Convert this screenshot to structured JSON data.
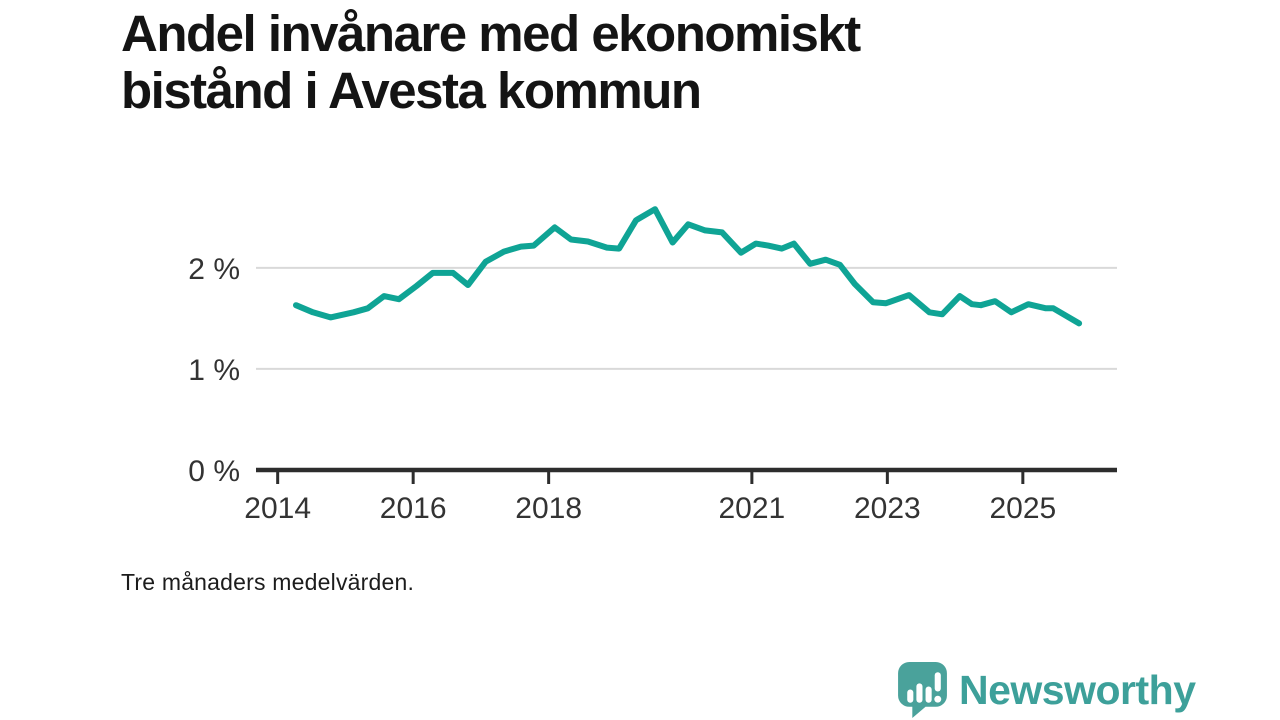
{
  "branding": {
    "logo_text": "Newsworthy",
    "logo_color": "#3da09a",
    "icon_color": "#4aa29b",
    "logo_icon": "speech-bubble-bar-chart-icon"
  },
  "chart_data": {
    "type": "line",
    "title": "Andel invånare med ekonomiskt bistånd i Avesta kommun",
    "footnote": "Tre månaders medelvärden.",
    "grid": "horizontal",
    "legend": "none",
    "x_axis": {
      "tick_values": [
        2014,
        2016,
        2018,
        2021,
        2023,
        2025
      ],
      "tick_labels": [
        "2014",
        "2016",
        "2018",
        "2021",
        "2023",
        "2025"
      ],
      "range": [
        2013.68,
        2026.39
      ]
    },
    "y_axis": {
      "tick_values": [
        0,
        1,
        2
      ],
      "tick_labels": [
        "0 %",
        "1 %",
        "2 %"
      ],
      "range": [
        0,
        2.75
      ],
      "unit": "percent"
    },
    "colors": {
      "line": "#0fa495",
      "axis": "#2d2d2d",
      "grid": "#d9d9d9",
      "tick_label": "#333333"
    },
    "series": [
      {
        "name": "Andel invånare med ekonomiskt bistånd (%)",
        "points": [
          [
            2014.27,
            1.63
          ],
          [
            2014.52,
            1.56
          ],
          [
            2014.78,
            1.51
          ],
          [
            2015.12,
            1.56
          ],
          [
            2015.33,
            1.6
          ],
          [
            2015.57,
            1.72
          ],
          [
            2015.79,
            1.69
          ],
          [
            2016.05,
            1.82
          ],
          [
            2016.29,
            1.95
          ],
          [
            2016.59,
            1.95
          ],
          [
            2016.81,
            1.83
          ],
          [
            2017.07,
            2.06
          ],
          [
            2017.34,
            2.16
          ],
          [
            2017.59,
            2.21
          ],
          [
            2017.78,
            2.22
          ],
          [
            2018.09,
            2.4
          ],
          [
            2018.33,
            2.28
          ],
          [
            2018.58,
            2.26
          ],
          [
            2018.86,
            2.2
          ],
          [
            2019.04,
            2.19
          ],
          [
            2019.29,
            2.47
          ],
          [
            2019.57,
            2.58
          ],
          [
            2019.83,
            2.25
          ],
          [
            2020.06,
            2.43
          ],
          [
            2020.31,
            2.37
          ],
          [
            2020.56,
            2.35
          ],
          [
            2020.84,
            2.15
          ],
          [
            2021.06,
            2.24
          ],
          [
            2021.24,
            2.22
          ],
          [
            2021.44,
            2.19
          ],
          [
            2021.62,
            2.24
          ],
          [
            2021.86,
            2.04
          ],
          [
            2022.09,
            2.08
          ],
          [
            2022.3,
            2.03
          ],
          [
            2022.52,
            1.84
          ],
          [
            2022.79,
            1.66
          ],
          [
            2022.98,
            1.65
          ],
          [
            2023.32,
            1.73
          ],
          [
            2023.62,
            1.56
          ],
          [
            2023.81,
            1.54
          ],
          [
            2024.07,
            1.72
          ],
          [
            2024.25,
            1.64
          ],
          [
            2024.38,
            1.63
          ],
          [
            2024.59,
            1.67
          ],
          [
            2024.83,
            1.56
          ],
          [
            2025.08,
            1.64
          ],
          [
            2025.34,
            1.6
          ],
          [
            2025.45,
            1.6
          ],
          [
            2025.83,
            1.45
          ]
        ]
      }
    ]
  }
}
